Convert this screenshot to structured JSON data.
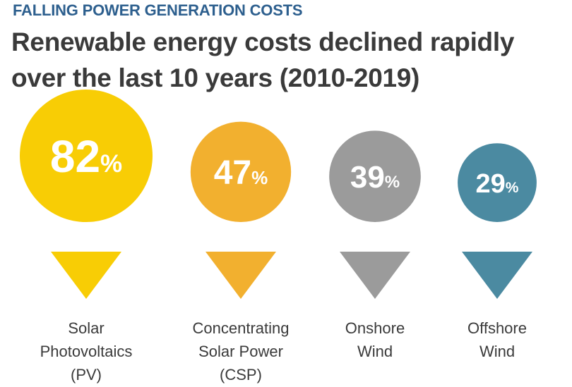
{
  "header": {
    "kicker": "FALLING POWER GENERATION COSTS",
    "title_lines": [
      "Renewable energy costs declined rapidly",
      "over the last 10 years (2010-2019)"
    ]
  },
  "chart_data": {
    "type": "bubble",
    "unit": "%",
    "categories": [
      {
        "label_lines": [
          "Solar",
          "Photovoltaics",
          "(PV)"
        ],
        "value": 82,
        "color": "#f8cd05"
      },
      {
        "label_lines": [
          "Concentrating",
          "Solar Power",
          "(CSP)"
        ],
        "value": 47,
        "color": "#f2b02f"
      },
      {
        "label_lines": [
          "Onshore",
          "Wind"
        ],
        "value": 39,
        "color": "#9b9b9b"
      },
      {
        "label_lines": [
          "Offshore",
          "Wind"
        ],
        "value": 29,
        "color": "#4b8aa1"
      }
    ]
  }
}
